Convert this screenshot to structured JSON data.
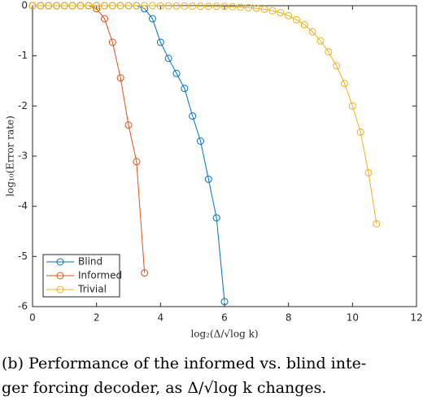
{
  "chart_data": {
    "type": "line",
    "xlabel": "log₂(Δ/√log k)",
    "ylabel": "log₁₀(Error rate)",
    "caption": [
      "(b) Performance of the informed vs. blind inte-",
      "ger forcing decoder, as Δ/√log k changes."
    ],
    "xlim": [
      0,
      12
    ],
    "xticks": [
      0,
      2,
      4,
      6,
      8,
      10,
      12
    ],
    "ylim": [
      -6,
      0
    ],
    "yticks": [
      0,
      -1,
      -2,
      -3,
      -4,
      -5,
      -6
    ],
    "legend": "lower left",
    "series": [
      {
        "name": "Blind",
        "color": "#0072bd",
        "x": [
          0,
          0.25,
          0.5,
          0.75,
          1,
          1.25,
          1.5,
          1.75,
          2,
          2.25,
          2.5,
          2.75,
          3,
          3.25,
          3.5,
          3.75,
          4,
          4.25,
          4.5,
          4.75,
          5,
          5.25,
          5.5,
          5.75,
          6
        ],
        "values": [
          0,
          0,
          0,
          0,
          0,
          0,
          0,
          0,
          0,
          0,
          0,
          0,
          0,
          0,
          -0.06,
          -0.26,
          -0.73,
          -1.05,
          -1.35,
          -1.65,
          -2.2,
          -2.7,
          -3.46,
          -4.23,
          -5.9
        ]
      },
      {
        "name": "Informed",
        "color": "#d95319",
        "x": [
          0,
          0.25,
          0.5,
          0.75,
          1,
          1.25,
          1.5,
          1.75,
          2,
          2.25,
          2.5,
          2.75,
          3,
          3.25,
          3.5
        ],
        "values": [
          0,
          0,
          0,
          0,
          0,
          0,
          0,
          0,
          -0.06,
          -0.26,
          -0.73,
          -1.44,
          -2.38,
          -3.11,
          -5.33
        ]
      },
      {
        "name": "Trivial",
        "color": "#edb120",
        "x": [
          0,
          0.25,
          0.5,
          0.75,
          1,
          1.25,
          1.5,
          1.75,
          2,
          2.25,
          2.5,
          2.75,
          3,
          3.25,
          3.5,
          3.75,
          4,
          4.25,
          4.5,
          4.75,
          5,
          5.25,
          5.5,
          5.75,
          6,
          6.25,
          6.5,
          6.75,
          7,
          7.25,
          7.5,
          7.75,
          8,
          8.25,
          8.5,
          8.75,
          9,
          9.25,
          9.5,
          9.75,
          10,
          10.25,
          10.5,
          10.75
        ],
        "values": [
          0,
          0,
          0,
          0,
          0,
          0,
          0,
          0,
          0,
          0,
          0,
          0,
          0,
          0,
          0,
          0,
          -0.005,
          -0.005,
          -0.007,
          -0.008,
          -0.009,
          -0.01,
          -0.012,
          -0.013,
          -0.015,
          -0.02,
          -0.03,
          -0.04,
          -0.05,
          -0.07,
          -0.1,
          -0.14,
          -0.2,
          -0.28,
          -0.38,
          -0.52,
          -0.7,
          -0.92,
          -1.2,
          -1.55,
          -2.0,
          -2.52,
          -3.33,
          -4.35
        ]
      }
    ]
  }
}
